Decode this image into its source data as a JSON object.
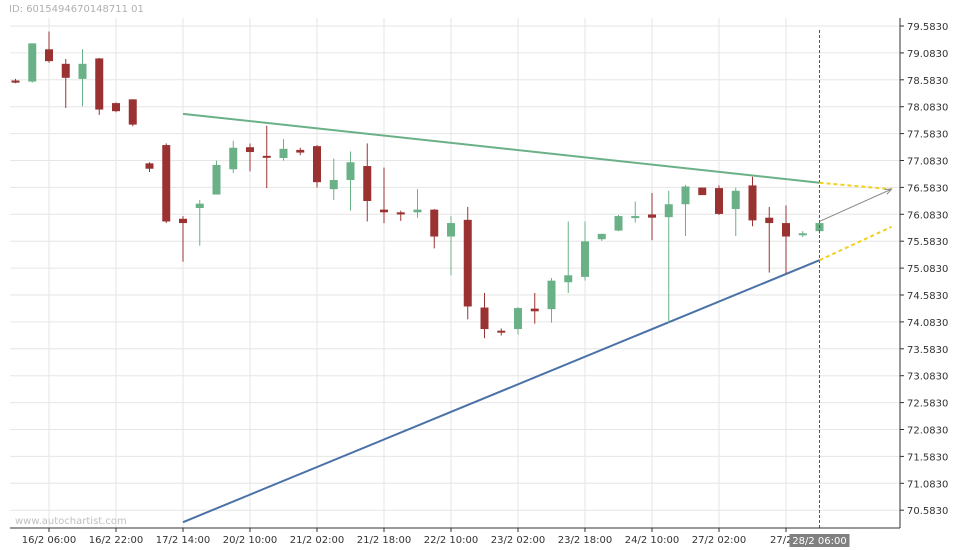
{
  "header": {
    "id_text": "ID: 6015494670148711 01"
  },
  "watermark": "www.autochartist.com",
  "colors": {
    "bullish": "#6ab187",
    "bearish": "#9b3232",
    "resistance": "#6ab187",
    "support": "#4a72a8",
    "forecast": "#f2d022",
    "grid": "#e6e6e6",
    "axis": "#333333",
    "projection_arrow": "#888888",
    "current_label_bg": "#808080"
  },
  "chart_data": {
    "type": "candlestick",
    "title": "",
    "xlabel": "",
    "ylabel": "",
    "ylim": [
      70.3,
      79.7
    ],
    "y_ticks": [
      "79.5830",
      "79.0830",
      "78.5830",
      "78.0830",
      "77.5830",
      "77.0830",
      "76.5830",
      "76.0830",
      "75.5830",
      "75.0830",
      "74.5830",
      "74.0830",
      "73.5830",
      "73.0830",
      "72.5830",
      "72.0830",
      "71.5830",
      "71.0830",
      "70.5830"
    ],
    "x_tick_labels": [
      "16/2 06:00",
      "16/2 22:00",
      "17/2 14:00",
      "20/2 10:00",
      "21/2 02:00",
      "21/2 18:00",
      "22/2 10:00",
      "23/2 02:00",
      "23/2 18:00",
      "24/2 10:00",
      "27/2 02:00",
      "27/2 1"
    ],
    "x_tick_index": [
      2,
      6,
      10,
      14,
      18,
      22,
      26,
      30,
      34,
      38,
      42,
      46
    ],
    "current_time_label": "28/2 06:00",
    "current_index": 48,
    "grid": true,
    "candles": [
      {
        "o": 78.57,
        "h": 78.6,
        "l": 78.52,
        "c": 78.53
      },
      {
        "o": 78.55,
        "h": 79.26,
        "l": 78.53,
        "c": 79.26
      },
      {
        "o": 79.15,
        "h": 79.48,
        "l": 78.9,
        "c": 78.93
      },
      {
        "o": 78.88,
        "h": 78.97,
        "l": 78.06,
        "c": 78.62
      },
      {
        "o": 78.6,
        "h": 79.15,
        "l": 78.09,
        "c": 78.88
      },
      {
        "o": 78.98,
        "h": 78.99,
        "l": 77.93,
        "c": 78.03
      },
      {
        "o": 78.15,
        "h": 78.16,
        "l": 77.98,
        "c": 78.0
      },
      {
        "o": 78.22,
        "h": 78.22,
        "l": 77.72,
        "c": 77.75
      },
      {
        "o": 77.03,
        "h": 77.05,
        "l": 76.87,
        "c": 76.93
      },
      {
        "o": 77.37,
        "h": 77.4,
        "l": 75.92,
        "c": 75.95
      },
      {
        "o": 76.0,
        "h": 76.05,
        "l": 75.2,
        "c": 75.92
      },
      {
        "o": 76.2,
        "h": 76.35,
        "l": 75.5,
        "c": 76.28
      },
      {
        "o": 76.45,
        "h": 77.08,
        "l": 76.45,
        "c": 77.0
      },
      {
        "o": 76.92,
        "h": 77.45,
        "l": 76.85,
        "c": 77.32
      },
      {
        "o": 77.33,
        "h": 77.4,
        "l": 76.88,
        "c": 77.24
      },
      {
        "o": 77.17,
        "h": 77.73,
        "l": 76.57,
        "c": 77.15
      },
      {
        "o": 77.13,
        "h": 77.48,
        "l": 77.08,
        "c": 77.3
      },
      {
        "o": 77.28,
        "h": 77.32,
        "l": 77.18,
        "c": 77.23
      },
      {
        "o": 77.35,
        "h": 77.37,
        "l": 76.58,
        "c": 76.68
      },
      {
        "o": 76.55,
        "h": 77.12,
        "l": 76.35,
        "c": 76.72
      },
      {
        "o": 76.72,
        "h": 77.25,
        "l": 76.15,
        "c": 77.05
      },
      {
        "o": 76.98,
        "h": 77.4,
        "l": 75.95,
        "c": 76.33
      },
      {
        "o": 76.17,
        "h": 76.95,
        "l": 75.92,
        "c": 76.12
      },
      {
        "o": 76.12,
        "h": 76.15,
        "l": 75.96,
        "c": 76.08
      },
      {
        "o": 76.12,
        "h": 76.55,
        "l": 76.02,
        "c": 76.17
      },
      {
        "o": 76.17,
        "h": 76.18,
        "l": 75.45,
        "c": 75.67
      },
      {
        "o": 75.67,
        "h": 76.05,
        "l": 74.95,
        "c": 75.92
      },
      {
        "o": 75.98,
        "h": 76.22,
        "l": 74.13,
        "c": 74.37
      },
      {
        "o": 74.35,
        "h": 74.62,
        "l": 73.78,
        "c": 73.95
      },
      {
        "o": 73.92,
        "h": 73.96,
        "l": 73.83,
        "c": 73.9
      },
      {
        "o": 73.95,
        "h": 74.36,
        "l": 73.85,
        "c": 74.34
      },
      {
        "o": 74.33,
        "h": 74.62,
        "l": 74.05,
        "c": 74.28
      },
      {
        "o": 74.32,
        "h": 74.9,
        "l": 74.07,
        "c": 74.85
      },
      {
        "o": 74.82,
        "h": 75.95,
        "l": 74.62,
        "c": 74.95
      },
      {
        "o": 74.92,
        "h": 75.95,
        "l": 74.85,
        "c": 75.58
      },
      {
        "o": 75.62,
        "h": 75.72,
        "l": 75.59,
        "c": 75.72
      },
      {
        "o": 75.78,
        "h": 76.07,
        "l": 75.77,
        "c": 76.05
      },
      {
        "o": 76.02,
        "h": 76.32,
        "l": 75.93,
        "c": 76.05
      },
      {
        "o": 76.08,
        "h": 76.48,
        "l": 75.6,
        "c": 76.02
      },
      {
        "o": 76.03,
        "h": 76.52,
        "l": 74.07,
        "c": 76.27
      },
      {
        "o": 76.27,
        "h": 76.63,
        "l": 75.68,
        "c": 76.6
      },
      {
        "o": 76.58,
        "h": 76.58,
        "l": 76.44,
        "c": 76.44
      },
      {
        "o": 76.57,
        "h": 76.62,
        "l": 76.07,
        "c": 76.09
      },
      {
        "o": 76.18,
        "h": 76.58,
        "l": 75.68,
        "c": 76.52
      },
      {
        "o": 76.62,
        "h": 76.78,
        "l": 75.86,
        "c": 75.97
      },
      {
        "o": 76.02,
        "h": 76.22,
        "l": 75.0,
        "c": 75.92
      },
      {
        "o": 75.92,
        "h": 76.25,
        "l": 74.97,
        "c": 75.67
      },
      {
        "o": 75.71,
        "h": 75.77,
        "l": 75.66,
        "c": 75.73
      },
      {
        "o": 75.77,
        "h": 75.92,
        "l": 75.72,
        "c": 75.92
      }
    ],
    "patterns": {
      "resistance": {
        "start": {
          "i": 10,
          "p": 77.95
        },
        "end": {
          "i": 48,
          "p": 76.67
        }
      },
      "support": {
        "start": {
          "i": 10,
          "p": 70.36
        },
        "end": {
          "i": 48,
          "p": 75.23
        }
      },
      "forecast_upper": {
        "start": {
          "i": 48,
          "p": 76.67
        },
        "end": {
          "i": 52.3,
          "p": 76.55
        }
      },
      "forecast_lower": {
        "start": {
          "i": 48,
          "p": 75.23
        },
        "end": {
          "i": 52.3,
          "p": 75.85
        }
      },
      "projection_arrow": {
        "start": {
          "i": 48,
          "p": 75.95
        },
        "end": {
          "i": 52.3,
          "p": 76.55
        }
      }
    }
  }
}
